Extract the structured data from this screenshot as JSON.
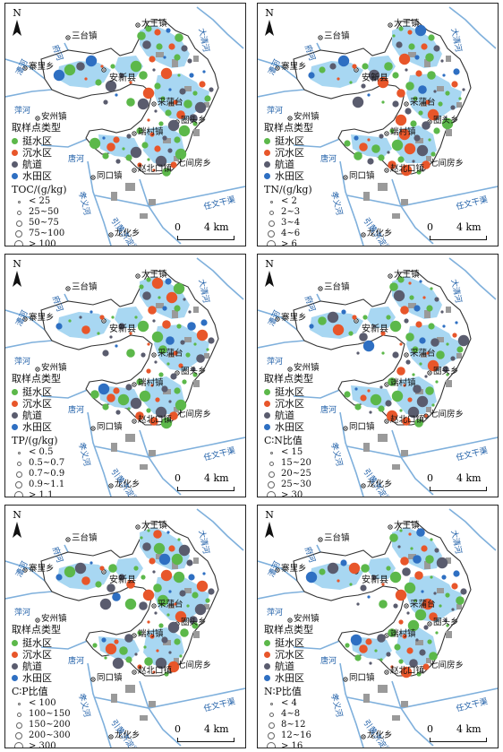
{
  "legend": {
    "title": "取样点类型",
    "types": [
      {
        "label": "挺水区",
        "color": "#5cb84a"
      },
      {
        "label": "沉水区",
        "color": "#e8562a"
      },
      {
        "label": "航道",
        "color": "#5a5c6e"
      },
      {
        "label": "水田区",
        "color": "#2e6fc2"
      }
    ]
  },
  "panels": [
    {
      "id": "toc",
      "variable": "TOC/(g/kg)",
      "classes": [
        "< 25",
        "25~50",
        "50~75",
        "75~100",
        "> 100"
      ]
    },
    {
      "id": "tn",
      "variable": "TN/(g/kg)",
      "classes": [
        "< 2",
        "2~3",
        "3~4",
        "4~6",
        "> 6"
      ]
    },
    {
      "id": "tp",
      "variable": "TP/(g/kg)",
      "classes": [
        "< 0.5",
        "0.5~0.7",
        "0.7~0.9",
        "0.9~1.1",
        "> 1.1"
      ]
    },
    {
      "id": "cn",
      "variable": "C∶N比值",
      "classes": [
        "< 15",
        "15~20",
        "20~25",
        "25~30",
        "> 30"
      ]
    },
    {
      "id": "cp",
      "variable": "C∶P比值",
      "classes": [
        "< 100",
        "100~150",
        "150~200",
        "200~300",
        "> 300"
      ]
    },
    {
      "id": "np",
      "variable": "N∶P比值",
      "classes": [
        "< 4",
        "4~8",
        "8~12",
        "12~16",
        "> 16"
      ]
    }
  ],
  "north": "N",
  "scale": {
    "start": "0",
    "end": "4 km"
  },
  "places": [
    {
      "name": "三台镇"
    },
    {
      "name": "大王镇"
    },
    {
      "name": "寨里乡"
    },
    {
      "name": "安新县"
    },
    {
      "name": "安州镇"
    },
    {
      "name": "圈头乡"
    },
    {
      "name": "端村镇"
    },
    {
      "name": "七间房乡"
    },
    {
      "name": "同口镇"
    },
    {
      "name": "赵北口镇"
    },
    {
      "name": "龙化乡"
    },
    {
      "name": "采蒲台"
    }
  ],
  "rivers": [
    {
      "name": "大清河"
    },
    {
      "name": "任文干渠"
    },
    {
      "name": "引黄济淀渠"
    },
    {
      "name": "唐河"
    },
    {
      "name": "孝义河"
    },
    {
      "name": "府河"
    },
    {
      "name": "漕河"
    },
    {
      "name": "萍河"
    }
  ]
}
